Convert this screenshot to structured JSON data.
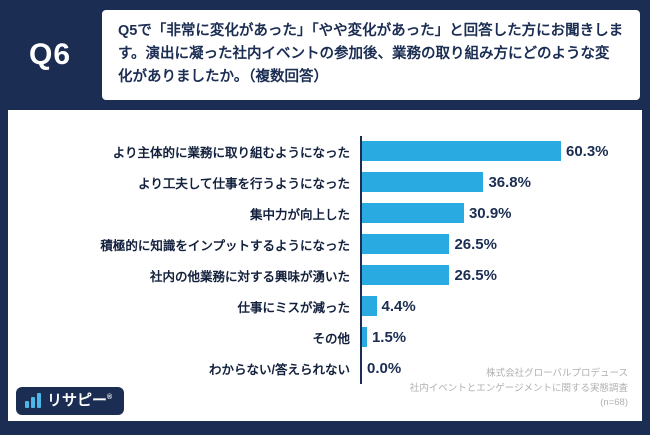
{
  "header": {
    "q_label": "Q6",
    "question": "Q5で「非常に変化があった」「やや変化があった」と回答した方にお聞きします。演出に凝った社内イベントの参加後、業務の取り組み方にどのような変化がありましたか。（複数回答）"
  },
  "chart_data": {
    "type": "bar",
    "orientation": "horizontal",
    "categories": [
      "より主体的に業務に取り組むようになった",
      "より工夫して仕事を行うようになった",
      "集中力が向上した",
      "積極的に知識をインプットするようになった",
      "社内の他業務に対する興味が湧いた",
      "仕事にミスが減った",
      "その他",
      "わからない/答えられない"
    ],
    "values": [
      60.3,
      36.8,
      30.9,
      26.5,
      26.5,
      4.4,
      1.5,
      0.0
    ],
    "value_labels": [
      "60.3%",
      "36.8%",
      "30.9%",
      "26.5%",
      "26.5%",
      "4.4%",
      "1.5%",
      "0.0%"
    ],
    "xlim": [
      0,
      70
    ],
    "bar_color": "#29abe2",
    "axis_color": "#1b2d52",
    "grid": false,
    "legend": false
  },
  "footer": {
    "logo_text": "リサピー",
    "logo_reg_mark": "®",
    "credit_lines": [
      "株式会社グローバルプロデュース",
      "社内イベントとエンゲージメントに関する実態調査",
      "(n=68)"
    ]
  },
  "colors": {
    "background_navy": "#1b2d52",
    "bar_blue": "#29abe2",
    "panel_white": "#ffffff"
  }
}
